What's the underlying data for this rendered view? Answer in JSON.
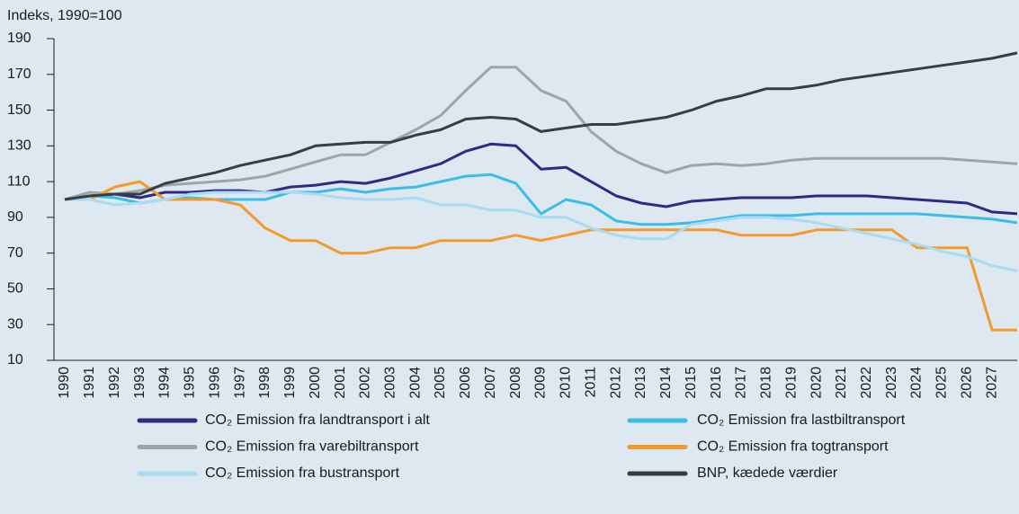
{
  "chart_data": {
    "type": "line",
    "y_label": "Indeks, 1990=100",
    "categories": [
      "1990",
      "1991",
      "1992",
      "1993",
      "1994",
      "1995",
      "1996",
      "1997",
      "1998",
      "1999",
      "2000",
      "2001",
      "2002",
      "2003",
      "2004",
      "2005",
      "2006",
      "2007",
      "2008",
      "2009",
      "2010",
      "2011",
      "2012",
      "2013",
      "2014",
      "2015",
      "2016",
      "2017",
      "2018",
      "2019",
      "2020",
      "2021",
      "2022",
      "2023",
      "2024",
      "2025",
      "2026",
      "2027",
      null
    ],
    "ylim": [
      10,
      190
    ],
    "yticks": [
      10,
      30,
      50,
      70,
      90,
      110,
      130,
      150,
      170,
      190
    ],
    "series": [
      {
        "name": "CO₂ Emission fra landtransport i alt",
        "color": "#2e2a86",
        "values": [
          100,
          102,
          103,
          101,
          104,
          104,
          105,
          105,
          104,
          107,
          108,
          110,
          109,
          112,
          116,
          120,
          127,
          131,
          130,
          117,
          118,
          110,
          102,
          98,
          96,
          99,
          100,
          101,
          101,
          101,
          102,
          102,
          102,
          101,
          100,
          99,
          98,
          93,
          92
        ]
      },
      {
        "name": "CO₂ Emission fra lastbiltransport",
        "color": "#3bbde9",
        "values": [
          100,
          102,
          101,
          98,
          100,
          101,
          100,
          100,
          100,
          104,
          104,
          106,
          104,
          106,
          107,
          110,
          113,
          114,
          109,
          92,
          100,
          97,
          88,
          86,
          86,
          87,
          89,
          91,
          91,
          91,
          92,
          92,
          92,
          92,
          92,
          91,
          90,
          89,
          87
        ]
      },
      {
        "name": "CO₂ Emission fra varebiltransport",
        "color": "#9ea5a6",
        "values": [
          100,
          104,
          103,
          105,
          108,
          109,
          110,
          111,
          113,
          117,
          121,
          125,
          125,
          132,
          139,
          147,
          161,
          174,
          174,
          161,
          155,
          138,
          127,
          120,
          115,
          119,
          120,
          119,
          120,
          122,
          123,
          123,
          123,
          123,
          123,
          123,
          122,
          121,
          120
        ]
      },
      {
        "name": "CO₂ Emission fra togtransport",
        "color": "#f39a2b",
        "values": [
          100,
          100,
          107,
          110,
          100,
          100,
          100,
          97,
          84,
          77,
          77,
          70,
          70,
          73,
          73,
          77,
          77,
          77,
          80,
          77,
          80,
          83,
          83,
          83,
          83,
          83,
          83,
          80,
          80,
          80,
          83,
          83,
          83,
          83,
          73,
          73,
          73,
          27,
          27
        ]
      },
      {
        "name": "CO₂ Emission fra bustransport",
        "color": "#a9dcf2",
        "values": [
          100,
          100,
          97,
          98,
          100,
          103,
          104,
          104,
          104,
          104,
          103,
          101,
          100,
          100,
          101,
          97,
          97,
          94,
          94,
          90,
          90,
          84,
          80,
          78,
          78,
          86,
          88,
          90,
          90,
          89,
          87,
          84,
          81,
          78,
          75,
          71,
          68,
          63,
          60
        ]
      },
      {
        "name": "BNP, kædede værdier",
        "color": "#333f48",
        "values": [
          100,
          102,
          103,
          103,
          109,
          112,
          115,
          119,
          122,
          125,
          130,
          131,
          132,
          132,
          136,
          139,
          145,
          146,
          145,
          138,
          140,
          142,
          142,
          144,
          146,
          150,
          155,
          158,
          162,
          162,
          164,
          167,
          169,
          171,
          173,
          175,
          177,
          179,
          182
        ]
      }
    ]
  }
}
